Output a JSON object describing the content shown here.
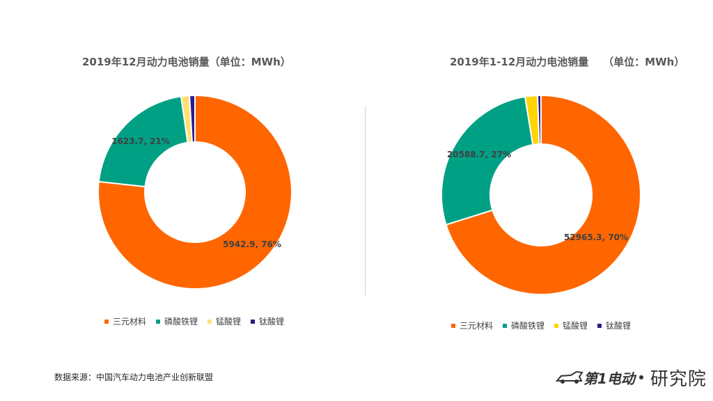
{
  "chart_data": [
    {
      "type": "pie",
      "title": "2019年12月动力电池销量（单位：MWh）",
      "categories": [
        "三元材料",
        "磷酸铁锂",
        "锰酸锂",
        "钛酸锂"
      ],
      "values": [
        5942.9,
        1623.7,
        108,
        70
      ],
      "colors": [
        "#FF6600",
        "#00A085",
        "#FFE071",
        "#2E1A8C"
      ],
      "data_labels": [
        {
          "text": "5942.9, 76%",
          "series": "三元材料"
        },
        {
          "text": "1623.7, 21%",
          "series": "磷酸铁锂"
        }
      ],
      "legend": "bottom"
    },
    {
      "type": "pie",
      "title": "2019年1-12月动力电池销量    （单位：MWh）",
      "categories": [
        "三元材料",
        "磷酸铁锂",
        "锰酸锂",
        "钛酸锂"
      ],
      "values": [
        52965.3,
        20588.7,
        1520,
        420
      ],
      "colors": [
        "#FF6600",
        "#00A085",
        "#FFD400",
        "#2E1A8C"
      ],
      "data_labels": [
        {
          "text": "52965.3, 70%",
          "series": "三元材料"
        },
        {
          "text": "20588.7, 27%",
          "series": "磷酸铁锂"
        }
      ],
      "legend": "bottom"
    }
  ],
  "source": "数据来源：中国汽车动力电池产业创新联盟",
  "logo": {
    "mark": "第1电动",
    "text": "研究院"
  }
}
